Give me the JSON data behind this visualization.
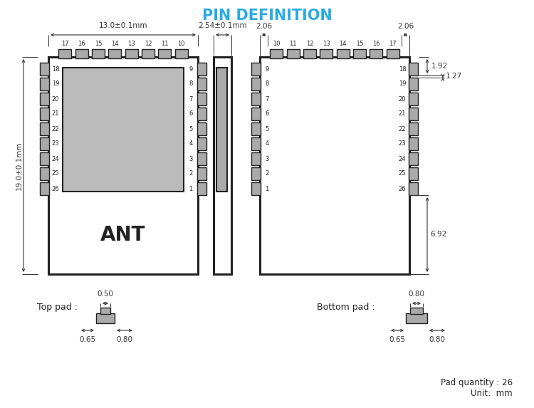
{
  "title": "PIN DEFINITION",
  "title_color": "#29ABE2",
  "bg_color": "#ffffff",
  "line_color": "#222222",
  "pad_color": "#aaaaaa",
  "dim_color": "#333333",
  "ant_text": "ANT",
  "top_view_label": "Top pad :",
  "bottom_view_label": "Bottom pad :",
  "module_width_label": "13.0±0.1mm",
  "module_height_label": "19.0±0.1mm",
  "side_width_label": "2.54±0.1mm",
  "bottom_pad_qty": "Pad quantity : 26",
  "unit_label": "Unit:  mm",
  "dim_2_06": "2.06",
  "dim_1_92": "1.92",
  "dim_1_27": "1.27",
  "dim_6_92": "6.92",
  "left_pins": [
    18,
    19,
    20,
    21,
    22,
    23,
    24,
    25,
    26
  ],
  "right_pins": [
    9,
    8,
    7,
    6,
    5,
    4,
    3,
    2,
    1
  ],
  "top_pins": [
    17,
    16,
    15,
    14,
    13,
    12,
    11,
    10
  ],
  "back_left_pins": [
    9,
    8,
    7,
    6,
    5,
    4,
    3,
    2,
    1
  ],
  "back_right_pins": [
    18,
    19,
    20,
    21,
    22,
    23,
    24,
    25,
    26
  ],
  "back_top_pins": [
    10,
    11,
    12,
    13,
    14,
    15,
    16,
    17
  ]
}
